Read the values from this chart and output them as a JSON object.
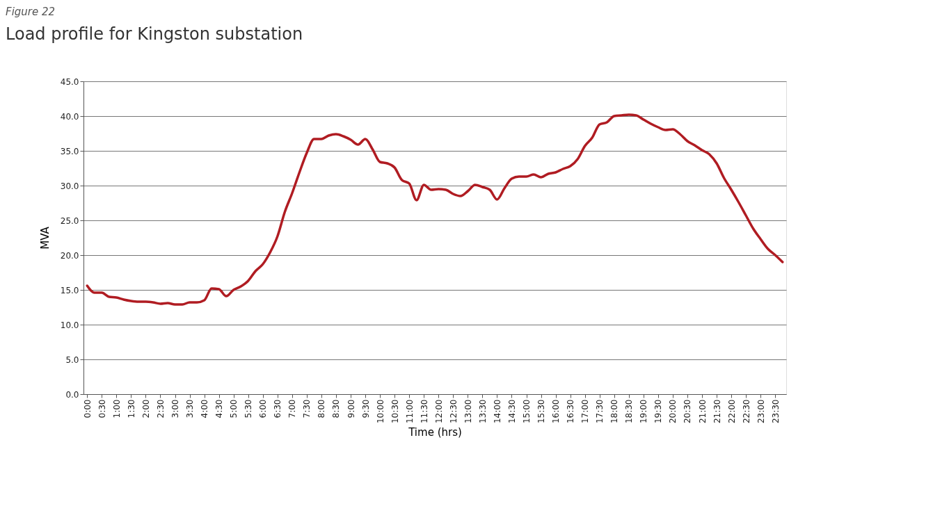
{
  "chart_data": {
    "type": "line",
    "title": "Load profile for Kingston substation",
    "annotations": [
      "Figure 22"
    ],
    "xlabel": "Time (hrs)",
    "ylabel": "MVA",
    "x": [
      0,
      0.25,
      0.5,
      0.75,
      1,
      1.25,
      1.5,
      1.75,
      2,
      2.25,
      2.5,
      2.75,
      3,
      3.25,
      3.5,
      3.75,
      4,
      4.25,
      4.5,
      4.75,
      5,
      5.25,
      5.5,
      5.75,
      6,
      6.25,
      6.5,
      6.75,
      7,
      7.25,
      7.5,
      7.75,
      8,
      8.25,
      8.5,
      8.75,
      9,
      9.25,
      9.5,
      9.75,
      10,
      10.25,
      10.5,
      10.75,
      11,
      11.25,
      11.5,
      11.75,
      12,
      12.25,
      12.5,
      12.75,
      13,
      13.25,
      13.5,
      13.75,
      14,
      14.25,
      14.5,
      14.75,
      15,
      15.25,
      15.5,
      15.75,
      16,
      16.25,
      16.5,
      16.75,
      17,
      17.25,
      17.5,
      17.75,
      18,
      18.25,
      18.5,
      18.75,
      19,
      19.25,
      19.5,
      19.75,
      20,
      20.25,
      20.5,
      20.75,
      21,
      21.25,
      21.5,
      21.75,
      22,
      22.25,
      22.5,
      22.75,
      23,
      23.25,
      23.5,
      23.75
    ],
    "series": [
      {
        "color": "#b01c22",
        "values": [
          15.6,
          14.6,
          14.6,
          14.0,
          13.9,
          13.6,
          13.4,
          13.3,
          13.3,
          13.2,
          13.0,
          13.1,
          12.9,
          12.9,
          13.2,
          13.2,
          13.5,
          15.2,
          15.1,
          14.1,
          15.0,
          15.5,
          16.3,
          17.7,
          18.7,
          20.4,
          22.7,
          26.2,
          28.9,
          31.9,
          34.7,
          36.7,
          36.7,
          37.2,
          37.4,
          37.1,
          36.6,
          35.9,
          36.7,
          35.2,
          33.4,
          33.2,
          32.6,
          30.8,
          30.3,
          27.9,
          30.1,
          29.4,
          29.5,
          29.4,
          28.8,
          28.5,
          29.2,
          30.1,
          29.8,
          29.4,
          28.0,
          29.6,
          31.0,
          31.3,
          31.3,
          31.6,
          31.2,
          31.7,
          31.9,
          32.4,
          32.8,
          33.8,
          35.7,
          36.9,
          38.8,
          39.1,
          40.0,
          40.1,
          40.2,
          40.1,
          39.5,
          38.9,
          38.4,
          38.0,
          38.1,
          37.4,
          36.4,
          35.8,
          35.1,
          34.5,
          33.2,
          31.1,
          29.4,
          27.6,
          25.7,
          23.8,
          22.3,
          20.9,
          20.0,
          19.0
        ]
      }
    ],
    "xlim": [
      -0.125,
      23.875
    ],
    "xticks": [
      {
        "value": 0,
        "label": "0:00"
      },
      {
        "value": 0.5,
        "label": "0:30"
      },
      {
        "value": 1,
        "label": "1:00"
      },
      {
        "value": 1.5,
        "label": "1:30"
      },
      {
        "value": 2,
        "label": "2:00"
      },
      {
        "value": 2.5,
        "label": "2:30"
      },
      {
        "value": 3,
        "label": "3:00"
      },
      {
        "value": 3.5,
        "label": "3:30"
      },
      {
        "value": 4,
        "label": "4:00"
      },
      {
        "value": 4.5,
        "label": "4:30"
      },
      {
        "value": 5,
        "label": "5:00"
      },
      {
        "value": 5.5,
        "label": "5:30"
      },
      {
        "value": 6,
        "label": "6:00"
      },
      {
        "value": 6.5,
        "label": "6:30"
      },
      {
        "value": 7,
        "label": "7:00"
      },
      {
        "value": 7.5,
        "label": "7:30"
      },
      {
        "value": 8,
        "label": "8:00"
      },
      {
        "value": 8.5,
        "label": "8:30"
      },
      {
        "value": 9,
        "label": "9:00"
      },
      {
        "value": 9.5,
        "label": "9:30"
      },
      {
        "value": 10,
        "label": "10:00"
      },
      {
        "value": 10.5,
        "label": "10:30"
      },
      {
        "value": 11,
        "label": "11:00"
      },
      {
        "value": 11.5,
        "label": "11:30"
      },
      {
        "value": 12,
        "label": "12:00"
      },
      {
        "value": 12.5,
        "label": "12:30"
      },
      {
        "value": 13,
        "label": "13:00"
      },
      {
        "value": 13.5,
        "label": "13:30"
      },
      {
        "value": 14,
        "label": "14:00"
      },
      {
        "value": 14.5,
        "label": "14:30"
      },
      {
        "value": 15,
        "label": "15:00"
      },
      {
        "value": 15.5,
        "label": "15:30"
      },
      {
        "value": 16,
        "label": "16:00"
      },
      {
        "value": 16.5,
        "label": "16:30"
      },
      {
        "value": 17,
        "label": "17:00"
      },
      {
        "value": 17.5,
        "label": "17:30"
      },
      {
        "value": 18,
        "label": "18:00"
      },
      {
        "value": 18.5,
        "label": "18:30"
      },
      {
        "value": 19,
        "label": "19:00"
      },
      {
        "value": 19.5,
        "label": "19:30"
      },
      {
        "value": 20,
        "label": "20:00"
      },
      {
        "value": 20.5,
        "label": "20:30"
      },
      {
        "value": 21,
        "label": "21:00"
      },
      {
        "value": 21.5,
        "label": "21:30"
      },
      {
        "value": 22,
        "label": "22:00"
      },
      {
        "value": 22.5,
        "label": "22:30"
      },
      {
        "value": 23,
        "label": "23:00"
      },
      {
        "value": 23.5,
        "label": "23:30"
      }
    ],
    "ylim": [
      0,
      45
    ],
    "yticks": [
      {
        "value": 0,
        "label": "0.0"
      },
      {
        "value": 5,
        "label": "5.0"
      },
      {
        "value": 10,
        "label": "10.0"
      },
      {
        "value": 15,
        "label": "15.0"
      },
      {
        "value": 20,
        "label": "20.0"
      },
      {
        "value": 25,
        "label": "25.0"
      },
      {
        "value": 30,
        "label": "30.0"
      },
      {
        "value": 35,
        "label": "35.0"
      },
      {
        "value": 40,
        "label": "40.0"
      },
      {
        "value": 45,
        "label": "45.0"
      }
    ],
    "grid": "y",
    "marker": "none",
    "line_style": "solid"
  }
}
